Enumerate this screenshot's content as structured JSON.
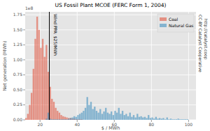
{
  "chart_data": {
    "type": "histogram",
    "title": "US Fossil Plant MCOE (FERC Form 1, 2004)",
    "x_label": "$ / MWh",
    "y_label": "Net generation (MWh)",
    "annotations": [
      {
        "text": "Wind PPA: $25/MWh",
        "x": 25
      },
      {
        "text": "CC-BY Catalyst Cooperative"
      },
      {
        "text": "http://catalyst.coop"
      },
      {
        "text": "1e8"
      }
    ],
    "xlim": [
      12,
      104
    ],
    "ylim": [
      0,
      1.8
    ],
    "xticks": [
      20,
      40,
      60,
      80,
      100
    ],
    "yticks": [
      {
        "value": 0,
        "label": "0.00"
      },
      {
        "value": 0.25,
        "label": "0.25"
      },
      {
        "value": 0.5,
        "label": "0.50"
      },
      {
        "value": 0.75,
        "label": "0.75"
      },
      {
        "value": 1,
        "label": "1.00"
      },
      {
        "value": 1.25,
        "label": "1.25"
      },
      {
        "value": 1.5,
        "label": "1.50"
      },
      {
        "value": 1.75,
        "label": "1.75"
      }
    ],
    "grid": true,
    "legend": "upper right",
    "bins": [
      12,
      13,
      14,
      15,
      16,
      17,
      18,
      19,
      20,
      21,
      22,
      23,
      24,
      25,
      26,
      27,
      28,
      29,
      30,
      31,
      32,
      33,
      34,
      35,
      36,
      37,
      38,
      39,
      40,
      41,
      42,
      43,
      44,
      45,
      46,
      47,
      48,
      49,
      50,
      51,
      52,
      53,
      54,
      55,
      56,
      57,
      58,
      59,
      60,
      61,
      62,
      63,
      64,
      65,
      66,
      67,
      68,
      69,
      70,
      71,
      72,
      73,
      74,
      75,
      76,
      77,
      78,
      79,
      80,
      81,
      82,
      83,
      84,
      85,
      86,
      87,
      88,
      89,
      90,
      91,
      92,
      93,
      94,
      95,
      96,
      97,
      98,
      99,
      100
    ],
    "series": [
      {
        "name": "Coal",
        "color": "#e24a33",
        "values": [
          0.03,
          0.1,
          0.25,
          0.45,
          0.85,
          1.35,
          1.72,
          1.5,
          1.2,
          1.35,
          1.05,
          1.25,
          0.8,
          0.55,
          0.35,
          0.3,
          0.2,
          0.15,
          0.12,
          0.08,
          0.06,
          0.05,
          0.04,
          0.03,
          0.03,
          0.02,
          0.02,
          0.01,
          0.01,
          0.01,
          0.01,
          0,
          0,
          0,
          0,
          0,
          0,
          0,
          0,
          0,
          0,
          0,
          0,
          0,
          0,
          0,
          0,
          0,
          0,
          0,
          0,
          0,
          0,
          0,
          0,
          0,
          0,
          0,
          0,
          0,
          0,
          0,
          0,
          0,
          0,
          0,
          0,
          0,
          0,
          0,
          0,
          0,
          0,
          0,
          0,
          0,
          0,
          0,
          0,
          0,
          0,
          0,
          0,
          0,
          0,
          0,
          0,
          0
        ]
      },
      {
        "name": "Natural Gas",
        "color": "#348abd",
        "values": [
          0,
          0,
          0,
          0,
          0,
          0,
          0,
          0,
          0,
          0,
          0,
          0.02,
          0.12,
          0.02,
          0.01,
          0.01,
          0.01,
          0.01,
          0.01,
          0.01,
          0.01,
          0.01,
          0.01,
          0.02,
          0.03,
          0.04,
          0.06,
          0.05,
          0.08,
          0.1,
          0.12,
          0.15,
          0.2,
          0.38,
          0.25,
          0.3,
          0.18,
          0.22,
          0.15,
          0.12,
          0.18,
          0.1,
          0.14,
          0.2,
          0.12,
          0.1,
          0.14,
          0.08,
          0.15,
          0.12,
          0.2,
          0.1,
          0.15,
          0.08,
          0.1,
          0.06,
          0.12,
          0.05,
          0.08,
          0.04,
          0.1,
          0.05,
          0.06,
          0.04,
          0.05,
          0.03,
          0.08,
          0.03,
          0.04,
          0.02,
          0.05,
          0.02,
          0.03,
          0.02,
          0.03,
          0.01,
          0.04,
          0.01,
          0.02,
          0.01,
          0.01,
          0.01,
          0.02,
          0.01,
          0.01,
          0.01,
          0.01,
          0.01
        ]
      }
    ]
  }
}
